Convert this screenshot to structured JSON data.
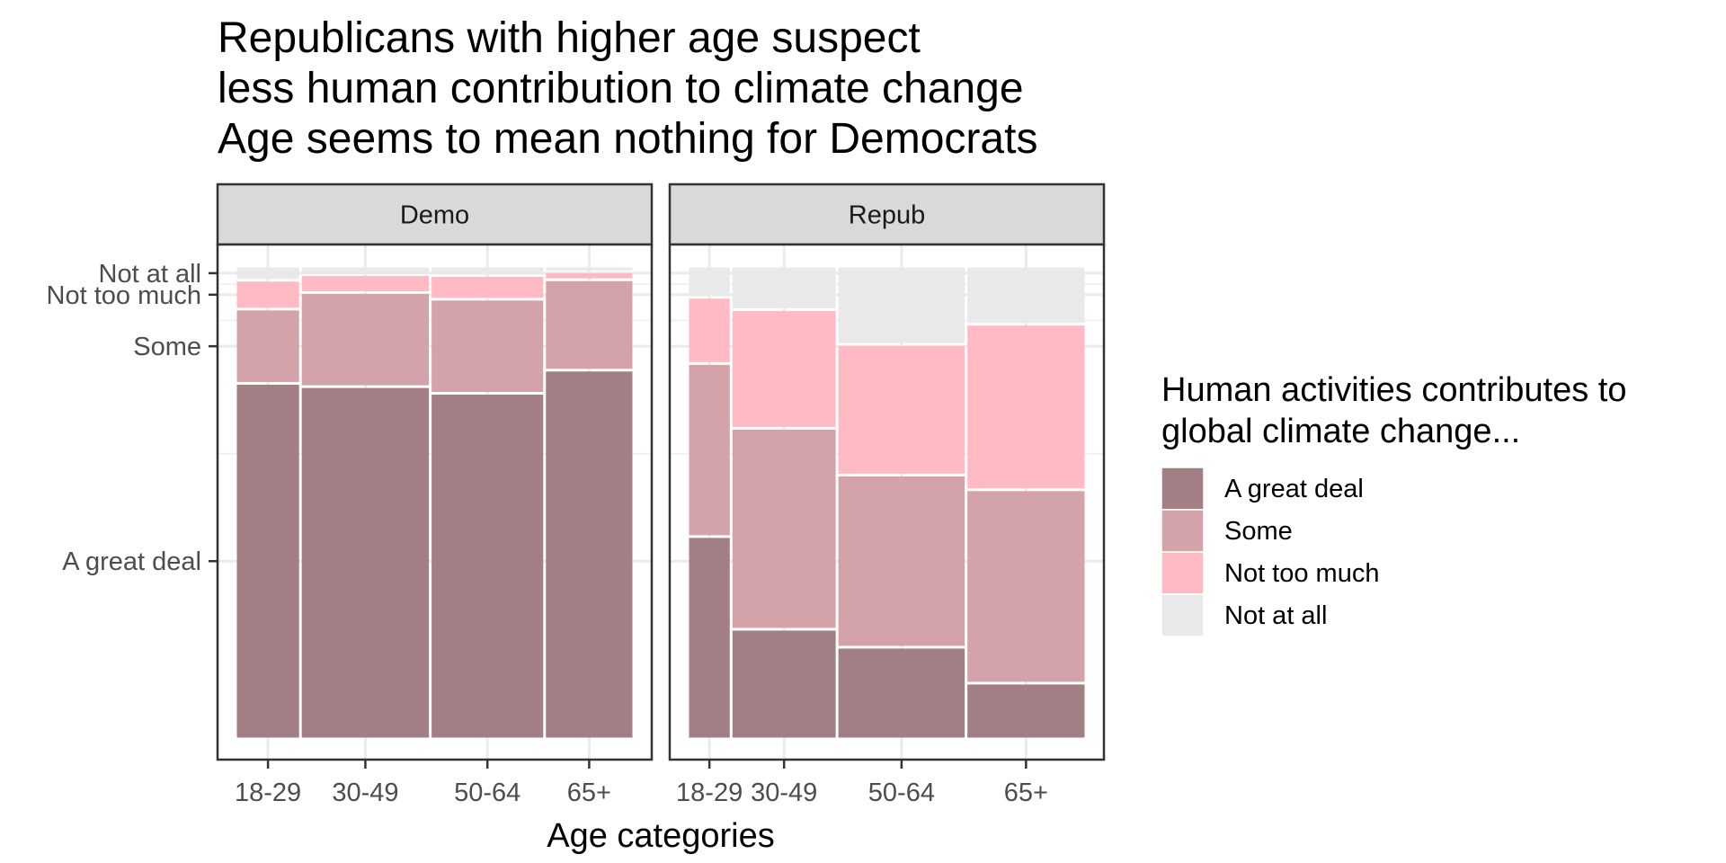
{
  "chart_data": {
    "type": "mosaic",
    "title_lines": [
      "Republicans with higher age suspect",
      " less human contribution to climate change",
      " Age seems to mean nothing for Democrats"
    ],
    "xlabel": "Age categories",
    "ylabel": "",
    "panels": [
      {
        "name": "Demo",
        "columns": [
          {
            "label": "18-29",
            "width": 0.163,
            "values": {
              "A great deal": 0.752,
              "Some": 0.157,
              "Not too much": 0.061,
              "Not at all": 0.03
            }
          },
          {
            "label": "30-49",
            "width": 0.326,
            "values": {
              "A great deal": 0.745,
              "Some": 0.199,
              "Not too much": 0.038,
              "Not at all": 0.018
            }
          },
          {
            "label": "50-64",
            "width": 0.287,
            "values": {
              "A great deal": 0.731,
              "Some": 0.199,
              "Not too much": 0.05,
              "Not at all": 0.02
            }
          },
          {
            "label": "65+",
            "width": 0.224,
            "values": {
              "A great deal": 0.78,
              "Some": 0.191,
              "Not too much": 0.017,
              "Not at all": 0.012
            }
          }
        ]
      },
      {
        "name": "Repub",
        "columns": [
          {
            "label": "18-29",
            "width": 0.109,
            "values": {
              "A great deal": 0.428,
              "Some": 0.366,
              "Not too much": 0.14,
              "Not at all": 0.066
            }
          },
          {
            "label": "30-49",
            "width": 0.266,
            "values": {
              "A great deal": 0.232,
              "Some": 0.425,
              "Not too much": 0.251,
              "Not at all": 0.092
            }
          },
          {
            "label": "50-64",
            "width": 0.324,
            "values": {
              "A great deal": 0.194,
              "Some": 0.364,
              "Not too much": 0.276,
              "Not at all": 0.166
            }
          },
          {
            "label": "65+",
            "width": 0.301,
            "values": {
              "A great deal": 0.118,
              "Some": 0.409,
              "Not too much": 0.35,
              "Not at all": 0.123
            }
          }
        ]
      }
    ],
    "y_tick_labels": [
      "A great deal",
      "Some",
      "Not too much",
      "Not at all"
    ],
    "legend": {
      "title_lines": [
        "Human activities contributes to",
        " global climate change..."
      ],
      "placement": "right",
      "entries": [
        {
          "label": "A great deal",
          "color": "#a17f84"
        },
        {
          "label": "Some",
          "color": "#d4a3aa"
        },
        {
          "label": "Not too much",
          "color": "#ffbac4"
        },
        {
          "label": "Not at all",
          "color": "#e9e9e9"
        }
      ]
    },
    "grid": true,
    "theme": "bw"
  }
}
